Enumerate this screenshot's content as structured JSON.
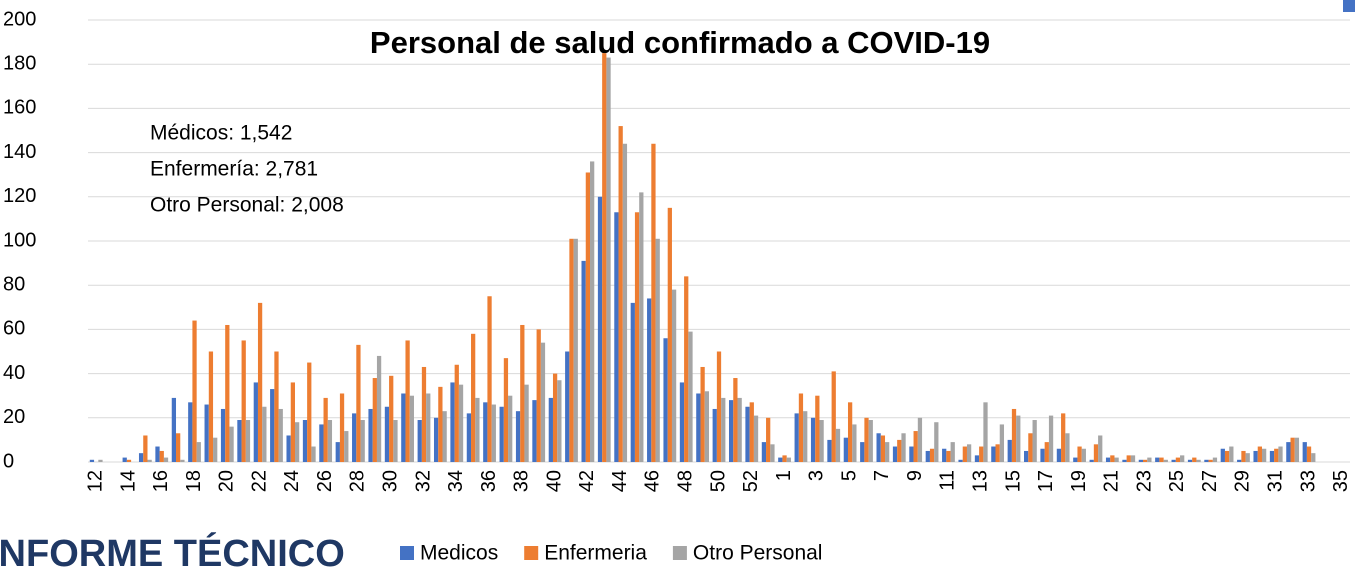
{
  "chart_data": {
    "type": "bar",
    "title": "Personal de salud confirmado a COVID-19",
    "annotations": [
      "Médicos: 1,542",
      "Enfermería: 2,781",
      "Otro Personal: 2,008"
    ],
    "logo_text": "INFORME TÉCNICO",
    "categories": [
      "12",
      null,
      "14",
      null,
      "16",
      null,
      "18",
      null,
      "20",
      null,
      "22",
      null,
      "24",
      null,
      "26",
      null,
      "28",
      null,
      "30",
      null,
      "32",
      null,
      "34",
      null,
      "36",
      null,
      "38",
      null,
      "40",
      null,
      "42",
      null,
      "44",
      null,
      "46",
      null,
      "48",
      null,
      "50",
      null,
      "52",
      null,
      "1",
      null,
      "3",
      null,
      "5",
      null,
      "7",
      null,
      "9",
      null,
      "11",
      null,
      "13",
      null,
      "15",
      null,
      "17",
      null,
      "19",
      null,
      "21",
      null,
      "23",
      null,
      "25",
      null,
      "27",
      null,
      "29",
      null,
      "31",
      null,
      "33",
      null,
      "35"
    ],
    "series": [
      {
        "name": "Medicos",
        "color": "#4472c4",
        "values": [
          1,
          0,
          2,
          4,
          7,
          29,
          27,
          26,
          24,
          19,
          36,
          33,
          12,
          19,
          17,
          9,
          22,
          24,
          25,
          31,
          19,
          20,
          36,
          22,
          27,
          25,
          23,
          28,
          29,
          50,
          91,
          120,
          113,
          72,
          74,
          56,
          36,
          31,
          24,
          28,
          25,
          9,
          2,
          22,
          20,
          10,
          11,
          9,
          13,
          7,
          7,
          5,
          6,
          1,
          3,
          7,
          10,
          5,
          6,
          6,
          2,
          1,
          2,
          1,
          1,
          2,
          1,
          1,
          1,
          6,
          1,
          5,
          5,
          9,
          9,
          0,
          0
        ]
      },
      {
        "name": "Enfermeria",
        "color": "#ed7d31",
        "values": [
          0,
          0,
          1,
          12,
          5,
          13,
          64,
          50,
          62,
          55,
          72,
          50,
          36,
          45,
          29,
          31,
          53,
          38,
          39,
          55,
          43,
          34,
          44,
          58,
          75,
          47,
          62,
          60,
          40,
          101,
          131,
          185,
          152,
          113,
          144,
          115,
          84,
          43,
          50,
          38,
          27,
          20,
          3,
          31,
          30,
          41,
          27,
          20,
          12,
          10,
          14,
          6,
          5,
          7,
          7,
          8,
          24,
          13,
          9,
          22,
          7,
          8,
          3,
          3,
          1,
          2,
          2,
          2,
          1,
          5,
          5,
          7,
          6,
          11,
          7,
          0,
          0
        ]
      },
      {
        "name": "Otro Personal",
        "color": "#a5a5a5",
        "values": [
          1,
          0,
          0,
          1,
          2,
          1,
          9,
          11,
          16,
          19,
          25,
          24,
          18,
          7,
          19,
          14,
          19,
          48,
          19,
          30,
          31,
          23,
          35,
          29,
          26,
          30,
          35,
          54,
          37,
          101,
          136,
          183,
          144,
          122,
          101,
          78,
          59,
          32,
          29,
          29,
          21,
          8,
          2,
          23,
          19,
          15,
          17,
          19,
          9,
          13,
          20,
          18,
          9,
          8,
          27,
          17,
          21,
          19,
          21,
          13,
          6,
          12,
          2,
          3,
          2,
          1,
          3,
          1,
          2,
          7,
          4,
          6,
          7,
          11,
          4,
          0,
          0
        ]
      }
    ],
    "ylim": [
      0,
      200
    ],
    "yticks": [
      0,
      20,
      40,
      60,
      80,
      100,
      120,
      140,
      160,
      180,
      200
    ],
    "grid": true
  }
}
